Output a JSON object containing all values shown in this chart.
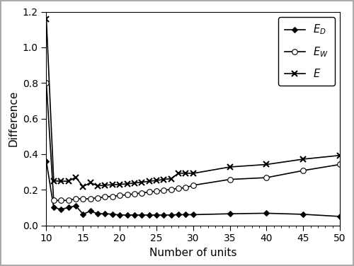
{
  "x_ED": [
    10,
    11,
    12,
    13,
    14,
    15,
    16,
    17,
    18,
    19,
    20,
    21,
    22,
    23,
    24,
    25,
    26,
    27,
    28,
    29,
    30,
    35,
    40,
    45,
    50
  ],
  "y_ED": [
    0.36,
    0.1,
    0.09,
    0.1,
    0.11,
    0.063,
    0.08,
    0.065,
    0.065,
    0.063,
    0.058,
    0.058,
    0.058,
    0.058,
    0.058,
    0.058,
    0.058,
    0.058,
    0.06,
    0.06,
    0.06,
    0.065,
    0.068,
    0.062,
    0.05
  ],
  "x_EW": [
    10,
    11,
    12,
    13,
    14,
    15,
    16,
    17,
    18,
    19,
    20,
    21,
    22,
    23,
    24,
    25,
    26,
    27,
    28,
    29,
    30,
    35,
    40,
    45,
    50
  ],
  "y_EW": [
    0.8,
    0.14,
    0.14,
    0.14,
    0.15,
    0.148,
    0.15,
    0.155,
    0.16,
    0.163,
    0.168,
    0.172,
    0.177,
    0.182,
    0.187,
    0.192,
    0.197,
    0.202,
    0.208,
    0.212,
    0.225,
    0.258,
    0.268,
    0.308,
    0.342
  ],
  "x_E": [
    10,
    11,
    12,
    13,
    14,
    15,
    16,
    17,
    18,
    19,
    20,
    21,
    22,
    23,
    24,
    25,
    26,
    27,
    28,
    29,
    30,
    35,
    40,
    45,
    50
  ],
  "y_E": [
    1.16,
    0.25,
    0.248,
    0.248,
    0.27,
    0.218,
    0.24,
    0.222,
    0.226,
    0.228,
    0.23,
    0.233,
    0.238,
    0.242,
    0.248,
    0.252,
    0.258,
    0.262,
    0.293,
    0.293,
    0.292,
    0.328,
    0.342,
    0.372,
    0.393
  ],
  "xlabel": "Number of units",
  "ylabel": "Difference",
  "xlim": [
    10,
    50
  ],
  "ylim": [
    0.0,
    1.2
  ],
  "yticks": [
    0.0,
    0.2,
    0.4,
    0.6,
    0.8,
    1.0,
    1.2
  ],
  "xticks": [
    10,
    15,
    20,
    25,
    30,
    35,
    40,
    45,
    50
  ],
  "line_color": "#000000",
  "background_color": "#ffffff",
  "outer_border_color": "#aaaaaa"
}
